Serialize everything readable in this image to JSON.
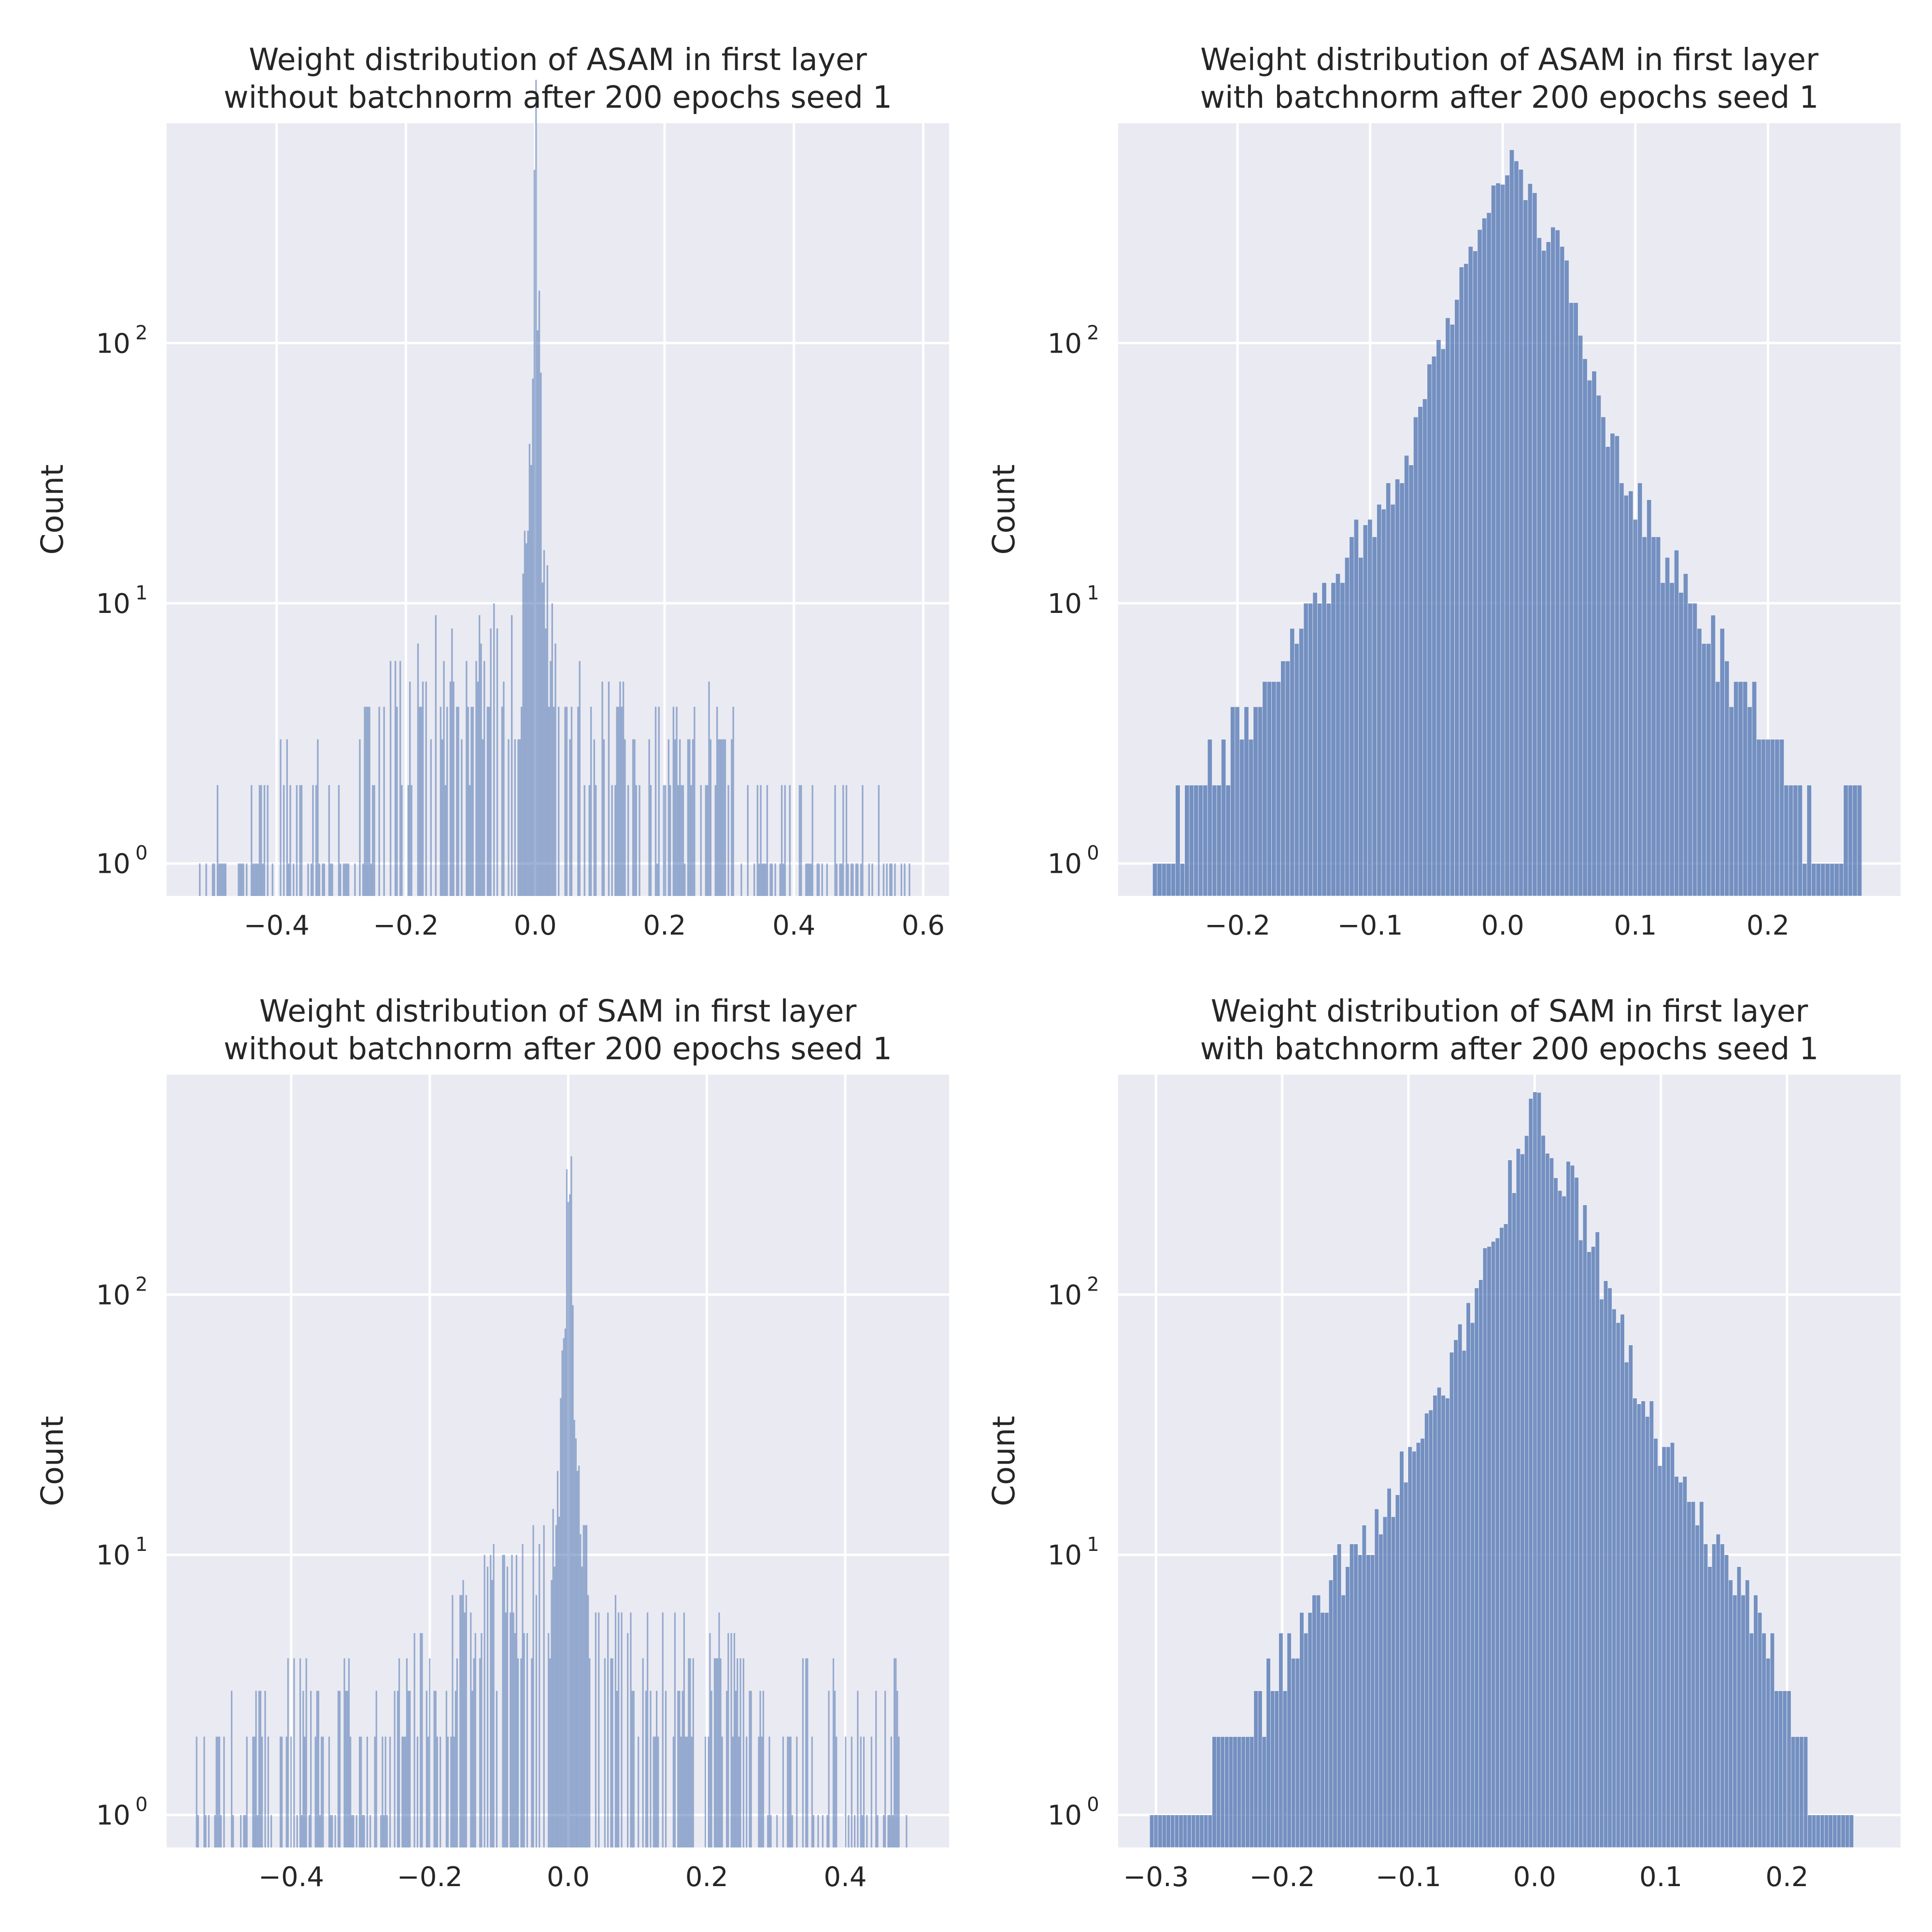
{
  "chart_data": [
    {
      "type": "bar",
      "title": "Weight distribution of ASAM in first layer\nwithout batchnorm after 200 epochs seed 1",
      "ylabel": "Count",
      "xlabel": "",
      "yscale": "log",
      "ylim": [
        0.75,
        700
      ],
      "xlim": [
        -0.57,
        0.64
      ],
      "xticks": [
        -0.4,
        -0.2,
        0.0,
        0.2,
        0.4,
        0.6
      ],
      "xtick_labels": [
        "−0.4",
        "−0.2",
        "0.0",
        "0.2",
        "0.4",
        "0.6"
      ],
      "yticks": [
        1,
        10,
        100
      ],
      "ytick_labels": [
        "10",
        "10",
        "10"
      ],
      "ytick_exponents": [
        "0",
        "1",
        "2"
      ],
      "bin_width": 0.0025,
      "x": [
        -0.52,
        -0.43,
        -0.4,
        -0.3,
        -0.25,
        -0.2,
        -0.18,
        -0.15,
        -0.12,
        -0.1,
        -0.08,
        -0.06,
        -0.05,
        -0.04,
        -0.03,
        -0.02,
        -0.015,
        -0.01,
        -0.005,
        0.0,
        0.005,
        0.01,
        0.015,
        0.02,
        0.03,
        0.04,
        0.05,
        0.06,
        0.08,
        0.1,
        0.12,
        0.15,
        0.18,
        0.2,
        0.25,
        0.3,
        0.35,
        0.4,
        0.42,
        0.5,
        0.58
      ],
      "counts": [
        1,
        1,
        2,
        1,
        3,
        3,
        4,
        5,
        4,
        3,
        6,
        5,
        4,
        7,
        3,
        8,
        12,
        25,
        120,
        540,
        90,
        22,
        12,
        8,
        4,
        5,
        3,
        4,
        3,
        3,
        3,
        4,
        3,
        2,
        3,
        2,
        1,
        2,
        1,
        1,
        1
      ],
      "color": "#4c72b0"
    },
    {
      "type": "bar",
      "title": "Weight distribution of ASAM in first layer\nwith batchnorm after 200 epochs seed 1",
      "ylabel": "Count",
      "xlabel": "",
      "yscale": "log",
      "ylim": [
        0.75,
        700
      ],
      "xlim": [
        -0.29,
        0.3
      ],
      "xticks": [
        -0.2,
        -0.1,
        0.0,
        0.1,
        0.2
      ],
      "xtick_labels": [
        "−0.2",
        "−0.1",
        "0.0",
        "0.1",
        "0.2"
      ],
      "yticks": [
        1,
        10,
        100
      ],
      "ytick_labels": [
        "10",
        "10",
        "10"
      ],
      "ytick_exponents": [
        "0",
        "1",
        "2"
      ],
      "bin_width": 0.00345,
      "x": [
        -0.264,
        -0.24,
        -0.2,
        -0.16,
        -0.12,
        -0.08,
        -0.04,
        0.0,
        0.04,
        0.08,
        0.12,
        0.16,
        0.2,
        0.22,
        0.24,
        0.27
      ],
      "counts": [
        1,
        2,
        3,
        8,
        15,
        30,
        140,
        520,
        220,
        45,
        15,
        7,
        3,
        2,
        1,
        2
      ],
      "color": "#4c72b0"
    },
    {
      "type": "bar",
      "title": "Weight distribution of SAM in first layer\nwithout batchnorm after 200 epochs seed 1",
      "ylabel": "Count",
      "xlabel": "",
      "yscale": "log",
      "ylim": [
        0.75,
        700
      ],
      "xlim": [
        -0.58,
        0.55
      ],
      "xticks": [
        -0.4,
        -0.2,
        0.0,
        0.2,
        0.4
      ],
      "xtick_labels": [
        "−0.4",
        "−0.2",
        "0.0",
        "0.2",
        "0.4"
      ],
      "yticks": [
        1,
        10,
        100
      ],
      "ytick_labels": [
        "10",
        "10",
        "10"
      ],
      "ytick_exponents": [
        "0",
        "1",
        "2"
      ],
      "bin_width": 0.0022,
      "x": [
        -0.54,
        -0.45,
        -0.4,
        -0.3,
        -0.2,
        -0.15,
        -0.12,
        -0.1,
        -0.08,
        -0.06,
        -0.04,
        -0.03,
        -0.02,
        -0.015,
        -0.01,
        -0.005,
        0.0,
        0.005,
        0.01,
        0.015,
        0.02,
        0.03,
        0.04,
        0.06,
        0.08,
        0.1,
        0.15,
        0.2,
        0.3,
        0.4,
        0.5
      ],
      "counts": [
        1,
        2,
        2,
        2,
        3,
        4,
        6,
        5,
        6,
        7,
        6,
        8,
        9,
        15,
        30,
        150,
        520,
        120,
        25,
        12,
        8,
        7,
        6,
        5,
        4,
        4,
        3,
        3,
        2,
        2,
        2
      ],
      "color": "#4c72b0"
    },
    {
      "type": "bar",
      "title": "Weight distribution of SAM in first layer\nwith batchnorm after 200 epochs seed 1",
      "ylabel": "Count",
      "xlabel": "",
      "yscale": "log",
      "ylim": [
        0.75,
        700
      ],
      "xlim": [
        -0.33,
        0.29
      ],
      "xticks": [
        -0.3,
        -0.2,
        -0.1,
        0.0,
        0.1,
        0.2
      ],
      "xtick_labels": [
        "−0.3",
        "−0.2",
        "−0.1",
        "0.0",
        "0.1",
        "0.2"
      ],
      "yticks": [
        1,
        10,
        100
      ],
      "ytick_labels": [
        "10",
        "10",
        "10"
      ],
      "ytick_exponents": [
        "0",
        "1",
        "2"
      ],
      "bin_width": 0.0033,
      "x": [
        -0.305,
        -0.28,
        -0.24,
        -0.2,
        -0.16,
        -0.12,
        -0.08,
        -0.04,
        0.0,
        0.04,
        0.08,
        0.12,
        0.16,
        0.2,
        0.22,
        0.25
      ],
      "counts": [
        1,
        1,
        2,
        4,
        8,
        15,
        35,
        140,
        520,
        180,
        45,
        15,
        7,
        3,
        1,
        1
      ],
      "color": "#4c72b0"
    }
  ]
}
